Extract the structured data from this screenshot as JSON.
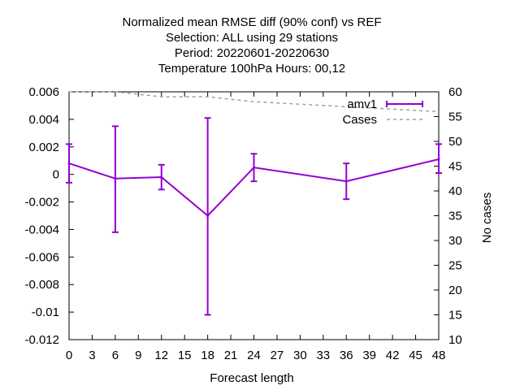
{
  "chart_data": {
    "type": "line",
    "title_lines": [
      "Normalized mean RMSE diff (90% conf) vs REF",
      "Selection: ALL using    29 stations",
      "Period: 20220601-20220630",
      "Temperature 100hPa   Hours:  00,12"
    ],
    "xlabel": "Forecast length",
    "ylabel": "",
    "y2label": "No cases",
    "xlim": [
      0,
      48
    ],
    "ylim": [
      -0.012,
      0.006
    ],
    "y2lim": [
      10,
      60
    ],
    "xticks": [
      "0",
      "3",
      "6",
      "9",
      "12",
      "15",
      "18",
      "21",
      "24",
      "27",
      "30",
      "33",
      "36",
      "39",
      "42",
      "45",
      "48"
    ],
    "yticks": [
      "0.006",
      "0.004",
      "0.002",
      "0",
      "-0.002",
      "-0.004",
      "-0.006",
      "-0.008",
      "-0.01",
      "-0.012"
    ],
    "y2ticks": [
      "60",
      "55",
      "50",
      "45",
      "40",
      "35",
      "30",
      "25",
      "20",
      "15",
      "10"
    ],
    "grid": false,
    "legend_position": "top-right",
    "series": [
      {
        "name": "amv1",
        "color": "#9400d3",
        "x": [
          0,
          6,
          12,
          18,
          24,
          36,
          48
        ],
        "y": [
          0.0008,
          -0.0003,
          -0.0002,
          -0.003,
          0.0005,
          -0.0005,
          0.0011
        ],
        "err_low": [
          -0.0006,
          -0.0042,
          -0.0011,
          -0.0102,
          -0.0005,
          -0.0018,
          0.0001
        ],
        "err_high": [
          0.0022,
          0.0035,
          0.0007,
          0.0041,
          0.0015,
          0.0008,
          0.0022
        ]
      },
      {
        "name": "Cases",
        "color": "#a0a0a0",
        "axis": "y2",
        "x": [
          0,
          6,
          12,
          18,
          24,
          36,
          48
        ],
        "y": [
          60,
          60,
          59,
          59,
          58,
          57,
          56
        ]
      }
    ]
  }
}
